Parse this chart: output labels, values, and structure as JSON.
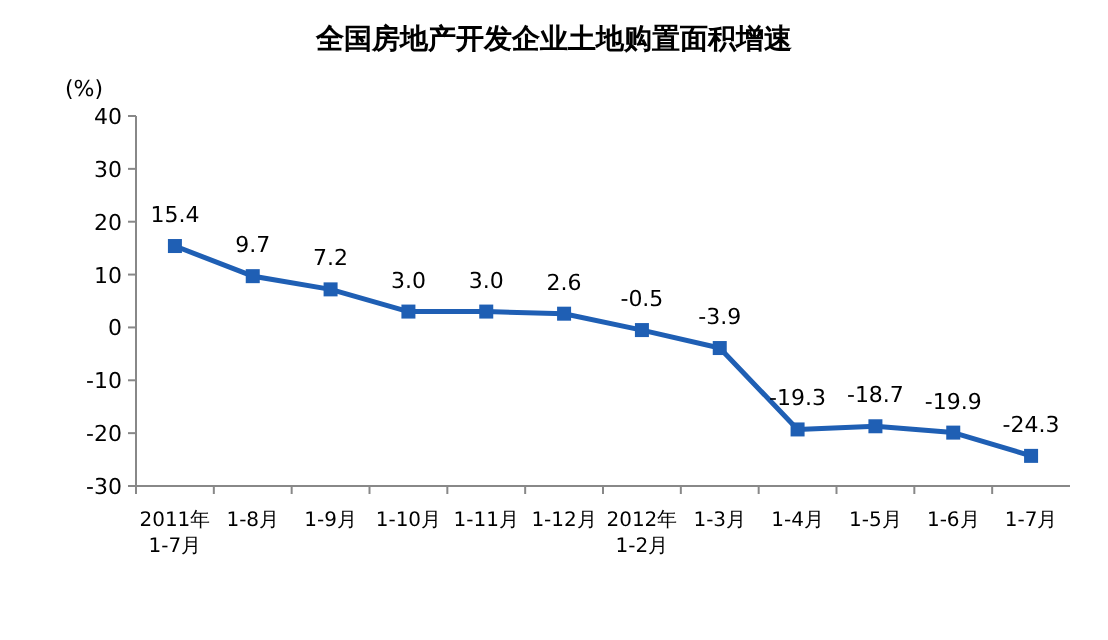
{
  "chart_data": {
    "type": "line",
    "title": "全国房地产开发企业土地购置面积增速",
    "ylabel": "(%)",
    "categories": [
      "2011年\n1-7月",
      "1-8月",
      "1-9月",
      "1-10月",
      "1-11月",
      "1-12月",
      "2012年\n1-2月",
      "1-3月",
      "1-4月",
      "1-5月",
      "1-6月",
      "1-7月"
    ],
    "series": [
      {
        "color": "#1f5fb4",
        "values": [
          15.4,
          9.7,
          7.2,
          3.0,
          3.0,
          2.6,
          -0.5,
          -3.9,
          -19.3,
          -18.7,
          -19.9,
          -24.3
        ],
        "value_labels": [
          "15.4",
          "9.7",
          "7.2",
          "3.0",
          "3.0",
          "2.6",
          "-0.5",
          "-3.9",
          "-19.3",
          "-18.7",
          "-19.9",
          "-24.3"
        ]
      }
    ],
    "ylim": [
      -30,
      40
    ],
    "yticks": [
      -30,
      -20,
      -10,
      0,
      10,
      20,
      30,
      40
    ],
    "marker": "square",
    "grid": false
  }
}
